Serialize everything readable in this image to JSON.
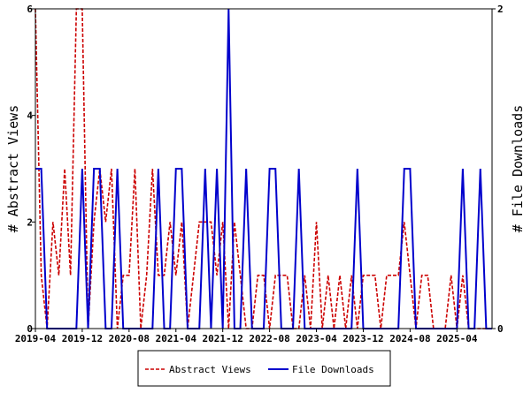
{
  "chart_data": {
    "type": "line",
    "x_ticks": [
      "2019-04",
      "2019-12",
      "2020-08",
      "2021-04",
      "2021-12",
      "2022-08",
      "2023-04",
      "2023-12",
      "2024-08",
      "2025-04"
    ],
    "x_tick_index": [
      0,
      8,
      16,
      24,
      32,
      40,
      48,
      56,
      64,
      72
    ],
    "x": [
      "2019-04",
      "2019-05",
      "2019-06",
      "2019-07",
      "2019-08",
      "2019-09",
      "2019-10",
      "2019-11",
      "2019-12",
      "2020-01",
      "2020-02",
      "2020-03",
      "2020-04",
      "2020-05",
      "2020-06",
      "2020-07",
      "2020-08",
      "2020-09",
      "2020-10",
      "2020-11",
      "2020-12",
      "2021-01",
      "2021-02",
      "2021-03",
      "2021-04",
      "2021-05",
      "2021-06",
      "2021-07",
      "2021-08",
      "2021-09",
      "2021-10",
      "2021-11",
      "2021-12",
      "2022-01",
      "2022-02",
      "2022-03",
      "2022-04",
      "2022-05",
      "2022-06",
      "2022-07",
      "2022-08",
      "2022-09",
      "2022-10",
      "2022-11",
      "2022-12",
      "2023-01",
      "2023-02",
      "2023-03",
      "2023-04",
      "2023-05",
      "2023-06",
      "2023-07",
      "2023-08",
      "2023-09",
      "2023-10",
      "2023-11",
      "2023-12",
      "2024-01",
      "2024-02",
      "2024-03",
      "2024-04",
      "2024-05",
      "2024-06",
      "2024-07",
      "2024-08",
      "2024-09",
      "2024-10",
      "2024-11",
      "2024-12",
      "2025-01",
      "2025-02",
      "2025-03",
      "2025-04",
      "2025-05",
      "2025-06",
      "2025-07",
      "2025-08",
      "2025-09",
      "2025-10"
    ],
    "series": [
      {
        "name": "Abstract Views",
        "axis": "left",
        "color": "#cc0000",
        "dash": true,
        "values": [
          6,
          1,
          0,
          2,
          1,
          3,
          1,
          6,
          6,
          0,
          2,
          3,
          2,
          3,
          0,
          1,
          1,
          3,
          0,
          1,
          3,
          1,
          1,
          2,
          1,
          2,
          0,
          1,
          2,
          2,
          2,
          1,
          2,
          0,
          2,
          1,
          0,
          0,
          1,
          1,
          0,
          1,
          1,
          1,
          0,
          0,
          1,
          0,
          2,
          0,
          1,
          0,
          1,
          0,
          1,
          0,
          1,
          1,
          1,
          0,
          1,
          1,
          1,
          2,
          1,
          0,
          1,
          1,
          0,
          0,
          0,
          1,
          0,
          1,
          0,
          0,
          0,
          0,
          0
        ]
      },
      {
        "name": "File Downloads",
        "axis": "right",
        "color": "#0000cc",
        "dash": false,
        "values": [
          1,
          1,
          0,
          0,
          0,
          0,
          0,
          0,
          1,
          0,
          1,
          1,
          0,
          0,
          1,
          0,
          0,
          0,
          0,
          0,
          0,
          1,
          0,
          0,
          1,
          1,
          0,
          0,
          0,
          1,
          0,
          1,
          0,
          2,
          0,
          0,
          1,
          0,
          0,
          0,
          1,
          1,
          0,
          0,
          0,
          1,
          0,
          0,
          0,
          0,
          0,
          0,
          0,
          0,
          0,
          1,
          0,
          0,
          0,
          0,
          0,
          0,
          0,
          1,
          1,
          0,
          0,
          0,
          0,
          0,
          0,
          0,
          0,
          1,
          0,
          0,
          1,
          0,
          0
        ]
      }
    ],
    "ylabel_left": "# Abstract Views",
    "ylabel_right": "# File Downloads",
    "ylim_left": [
      0,
      6
    ],
    "ylim_right": [
      0,
      2
    ],
    "yticks_left": [
      0,
      2,
      4,
      6
    ],
    "yticks_right": [
      0,
      2
    ],
    "grid": false,
    "legend_position": "bottom-center"
  }
}
